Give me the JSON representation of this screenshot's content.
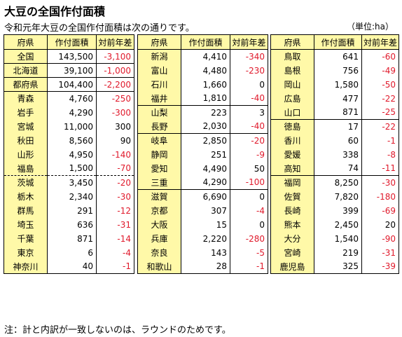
{
  "title": "大豆の全国作付面積",
  "subtitle": "令和元年大豆の全国作付面積は次の通りです。",
  "unit": "（単位:ha）",
  "note": "注：計と内訳が一致しないのは、ラウンドのためです。",
  "headers": {
    "pref": "府県",
    "area": "作付面積",
    "diff": "対前年差"
  },
  "colors": {
    "header_bg": "#fff9a8",
    "negative": "#e0192b"
  },
  "tables": [
    {
      "rows": [
        {
          "pref": "全国",
          "area": "143,500",
          "diff": "-3,100"
        },
        {
          "pref": "北海道",
          "area": "39,100",
          "diff": "-1,000"
        },
        {
          "pref": "都府県",
          "area": "104,400",
          "diff": "-2,200"
        },
        {
          "pref": "青森",
          "area": "4,760",
          "diff": "-250"
        },
        {
          "pref": "岩手",
          "area": "4,290",
          "diff": "-300"
        },
        {
          "pref": "宮城",
          "area": "11,000",
          "diff": "300"
        },
        {
          "pref": "秋田",
          "area": "8,560",
          "diff": "90"
        },
        {
          "pref": "山形",
          "area": "4,950",
          "diff": "-140"
        },
        {
          "pref": "福島",
          "area": "1,500",
          "diff": "-70"
        },
        {
          "pref": "茨城",
          "area": "3,450",
          "diff": "-20"
        },
        {
          "pref": "栃木",
          "area": "2,340",
          "diff": "-30"
        },
        {
          "pref": "群馬",
          "area": "291",
          "diff": "-12"
        },
        {
          "pref": "埼玉",
          "area": "636",
          "diff": "-31"
        },
        {
          "pref": "千葉",
          "area": "871",
          "diff": "-14"
        },
        {
          "pref": "東京",
          "area": "6",
          "diff": "-4"
        },
        {
          "pref": "神奈川",
          "area": "40",
          "diff": "-1"
        }
      ]
    },
    {
      "rows": [
        {
          "pref": "新潟",
          "area": "4,410",
          "diff": "-340"
        },
        {
          "pref": "富山",
          "area": "4,480",
          "diff": "-230"
        },
        {
          "pref": "石川",
          "area": "1,660",
          "diff": "0"
        },
        {
          "pref": "福井",
          "area": "1,810",
          "diff": "-40"
        },
        {
          "pref": "山梨",
          "area": "223",
          "diff": "3"
        },
        {
          "pref": "長野",
          "area": "2,030",
          "diff": "-40"
        },
        {
          "pref": "岐阜",
          "area": "2,850",
          "diff": "-20"
        },
        {
          "pref": "静岡",
          "area": "251",
          "diff": "-9"
        },
        {
          "pref": "愛知",
          "area": "4,490",
          "diff": "50"
        },
        {
          "pref": "三重",
          "area": "4,290",
          "diff": "-100"
        },
        {
          "pref": "滋賀",
          "area": "6,690",
          "diff": "0"
        },
        {
          "pref": "京都",
          "area": "307",
          "diff": "-4"
        },
        {
          "pref": "大阪",
          "area": "15",
          "diff": "0"
        },
        {
          "pref": "兵庫",
          "area": "2,220",
          "diff": "-280"
        },
        {
          "pref": "奈良",
          "area": "143",
          "diff": "-5"
        },
        {
          "pref": "和歌山",
          "area": "28",
          "diff": "-1"
        }
      ]
    },
    {
      "rows": [
        {
          "pref": "鳥取",
          "area": "641",
          "diff": "-60"
        },
        {
          "pref": "島根",
          "area": "756",
          "diff": "-49"
        },
        {
          "pref": "岡山",
          "area": "1,580",
          "diff": "-50"
        },
        {
          "pref": "広島",
          "area": "477",
          "diff": "-22"
        },
        {
          "pref": "山口",
          "area": "871",
          "diff": "-25"
        },
        {
          "pref": "徳島",
          "area": "17",
          "diff": "-22"
        },
        {
          "pref": "香川",
          "area": "60",
          "diff": "-1"
        },
        {
          "pref": "愛媛",
          "area": "338",
          "diff": "-8"
        },
        {
          "pref": "高知",
          "area": "74",
          "diff": "-11"
        },
        {
          "pref": "福岡",
          "area": "8,250",
          "diff": "-30"
        },
        {
          "pref": "佐賀",
          "area": "7,820",
          "diff": "-180"
        },
        {
          "pref": "長崎",
          "area": "399",
          "diff": "-69"
        },
        {
          "pref": "熊本",
          "area": "2,450",
          "diff": "20"
        },
        {
          "pref": "大分",
          "area": "1,540",
          "diff": "-90"
        },
        {
          "pref": "宮崎",
          "area": "219",
          "diff": "-31"
        },
        {
          "pref": "鹿児島",
          "area": "325",
          "diff": "-39"
        }
      ]
    }
  ]
}
